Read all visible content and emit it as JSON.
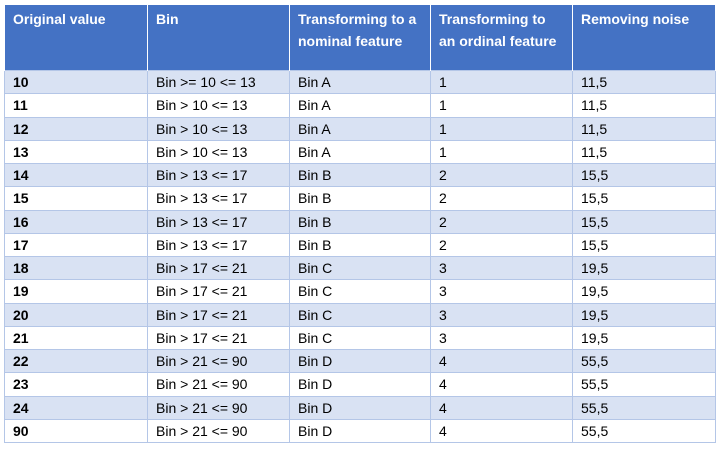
{
  "columns": [
    "Original value",
    "Bin",
    "Transforming to a nominal feature",
    "Transforming to an ordinal feature",
    "Removing noise"
  ],
  "rows": [
    [
      "10",
      "Bin >= 10 <= 13",
      "Bin A",
      "1",
      "11,5"
    ],
    [
      "11",
      "Bin > 10 <= 13",
      "Bin A",
      "1",
      "11,5"
    ],
    [
      "12",
      "Bin > 10 <= 13",
      "Bin A",
      "1",
      "11,5"
    ],
    [
      "13",
      "Bin > 10 <= 13",
      "Bin A",
      "1",
      "11,5"
    ],
    [
      "14",
      "Bin > 13 <= 17",
      "Bin B",
      "2",
      "15,5"
    ],
    [
      "15",
      "Bin > 13 <= 17",
      "Bin B",
      "2",
      "15,5"
    ],
    [
      "16",
      "Bin > 13 <= 17",
      "Bin B",
      "2",
      "15,5"
    ],
    [
      "17",
      "Bin > 13 <= 17",
      "Bin B",
      "2",
      "15,5"
    ],
    [
      "18",
      "Bin > 17 <= 21",
      "Bin C",
      "3",
      "19,5"
    ],
    [
      "19",
      "Bin > 17 <= 21",
      "Bin C",
      "3",
      "19,5"
    ],
    [
      "20",
      "Bin > 17 <= 21",
      "Bin C",
      "3",
      "19,5"
    ],
    [
      "21",
      "Bin > 17 <= 21",
      "Bin C",
      "3",
      "19,5"
    ],
    [
      "22",
      "Bin > 21 <= 90",
      "Bin D",
      "4",
      "55,5"
    ],
    [
      "23",
      "Bin > 21 <= 90",
      "Bin D",
      "4",
      "55,5"
    ],
    [
      "24",
      "Bin > 21 <= 90",
      "Bin D",
      "4",
      "55,5"
    ],
    [
      "90",
      "Bin > 21 <= 90",
      "Bin D",
      "4",
      "55,5"
    ]
  ],
  "colors": {
    "header_bg": "#4472c4",
    "header_text": "#ffffff",
    "band_bg": "#d9e2f3",
    "grid_line": "#b4c6e7"
  }
}
